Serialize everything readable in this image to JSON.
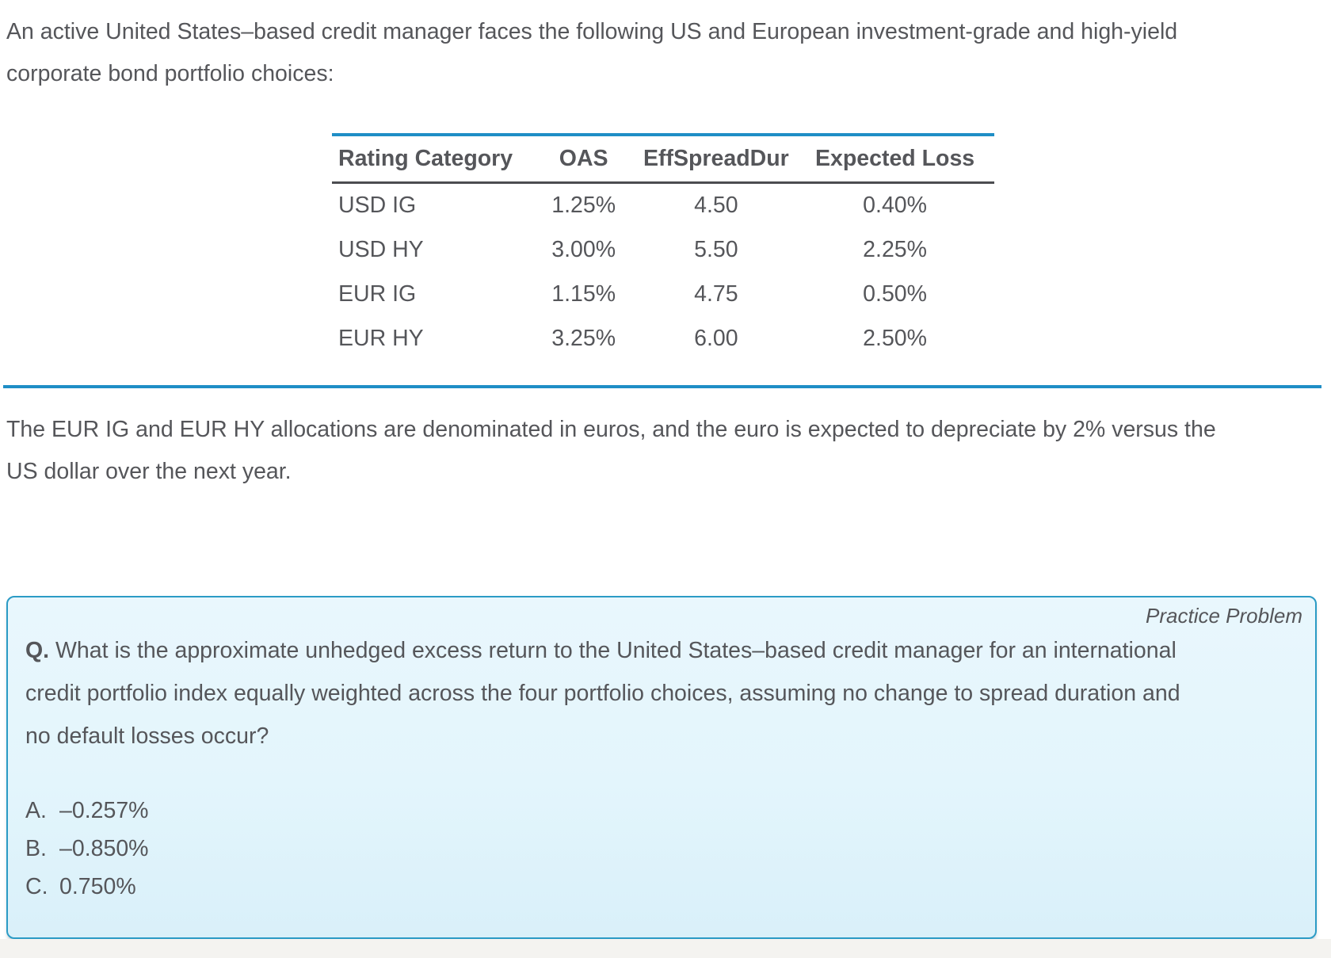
{
  "page": {
    "intro_paragraph": "An active United States–based credit manager faces the following US and European investment-grade and high-yield corporate bond portfolio choices:",
    "table": {
      "headers": [
        "Rating Category",
        "OAS",
        "EffSpreadDur",
        "Expected Loss"
      ],
      "rows": [
        [
          "USD IG",
          "1.25%",
          "4.50",
          "0.40%"
        ],
        [
          "USD HY",
          "3.00%",
          "5.50",
          "2.25%"
        ],
        [
          "EUR IG",
          "1.15%",
          "4.75",
          "0.50%"
        ],
        [
          "EUR HY",
          "3.25%",
          "6.00",
          "2.50%"
        ]
      ]
    },
    "note_paragraph": "The EUR IG and EUR HY allocations are denominated in euros, and the euro is expected to depreciate by 2% versus the US dollar over the next year.",
    "practice_problem": {
      "label": "Practice Problem",
      "question_prefix": "Q.",
      "question": " What is the approximate unhedged excess return to the United States–based credit manager for an international credit portfolio index equally weighted across the four portfolio choices, assuming no change to spread duration and no default losses occur?",
      "options": [
        {
          "letter": "A.",
          "text": "–0.257%"
        },
        {
          "letter": "B.",
          "text": "–0.850%"
        },
        {
          "letter": "C.",
          "text": "0.750%"
        }
      ]
    },
    "colors": {
      "accent_blue": "#1f8ec6",
      "box_border": "#2b9bc5",
      "box_background": "#e3f5fc",
      "text": "#55565a",
      "header_rule": "#4c4d50"
    }
  }
}
